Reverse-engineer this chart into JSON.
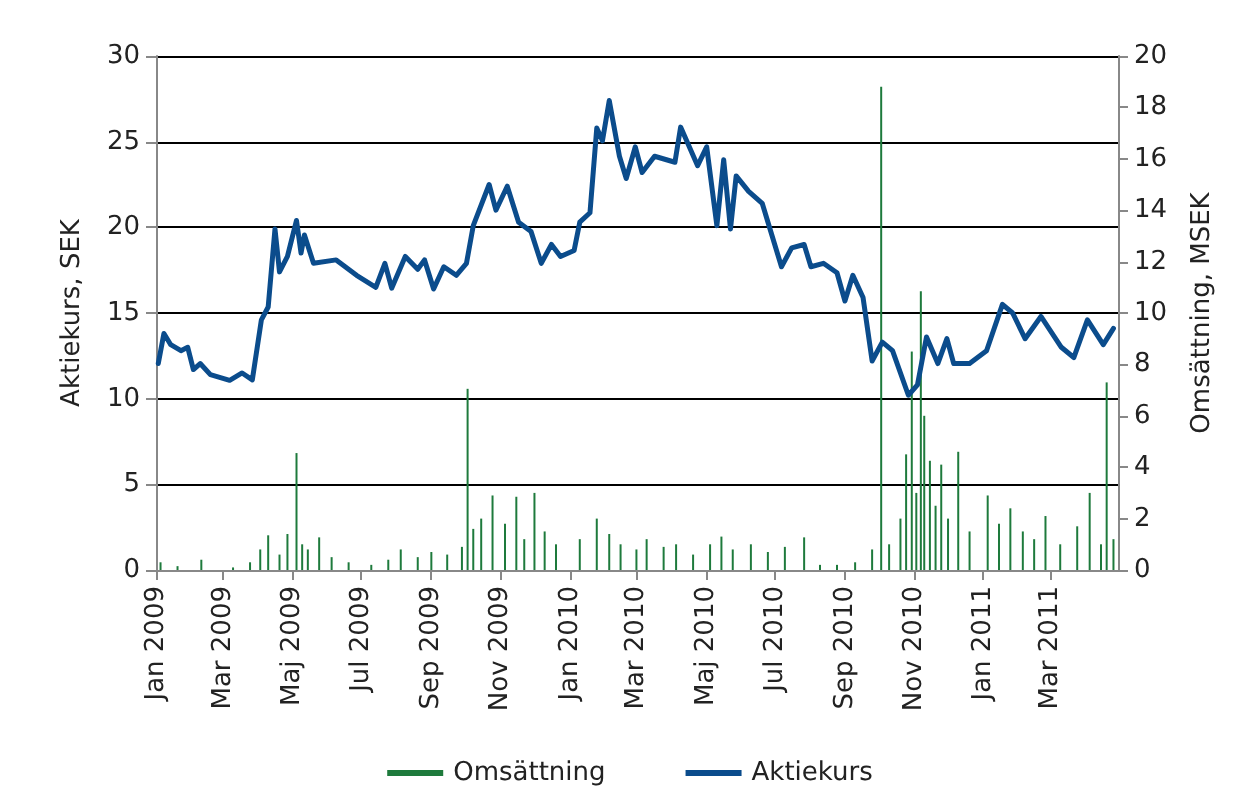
{
  "chart_data": {
    "type": "line",
    "ylabel": "Aktiekurs, SEK",
    "y2label": "Omsättning, MSEK",
    "xlim": [
      "2009-01-01",
      "2011-04-30"
    ],
    "xticks": [
      {
        "value": "2009-01-01",
        "label": "Jan 2009"
      },
      {
        "value": "2009-03-01",
        "label": "Mar 2009"
      },
      {
        "value": "2009-05-01",
        "label": "Maj 2009"
      },
      {
        "value": "2009-07-01",
        "label": "Jul 2009"
      },
      {
        "value": "2009-09-01",
        "label": "Sep 2009"
      },
      {
        "value": "2009-11-01",
        "label": "Nov 2009"
      },
      {
        "value": "2010-01-01",
        "label": "Jan 2010"
      },
      {
        "value": "2010-03-01",
        "label": "Mar 2010"
      },
      {
        "value": "2010-05-01",
        "label": "Maj 2010"
      },
      {
        "value": "2010-07-01",
        "label": "Jul 2010"
      },
      {
        "value": "2010-09-01",
        "label": "Sep 2010"
      },
      {
        "value": "2010-11-01",
        "label": "Nov 2010"
      },
      {
        "value": "2011-01-01",
        "label": "Jan 2011"
      },
      {
        "value": "2011-03-01",
        "label": "Mar 2011"
      }
    ],
    "ylim": [
      0,
      30
    ],
    "yticks": [
      0,
      5,
      10,
      15,
      20,
      25,
      30
    ],
    "y2lim": [
      0,
      20
    ],
    "y2ticks": [
      0,
      2,
      4,
      6,
      8,
      10,
      12,
      14,
      16,
      18,
      20
    ],
    "grid": "y",
    "legend": "bottom",
    "marker": "none",
    "line_style": "solid",
    "series": [
      {
        "name": "Omsättning",
        "type": "bar",
        "axis": "y2",
        "color": "#1e7a3c",
        "x": [
          "2009-01-05",
          "2009-01-20",
          "2009-02-10",
          "2009-03-10",
          "2009-03-25",
          "2009-04-03",
          "2009-04-10",
          "2009-04-20",
          "2009-04-27",
          "2009-05-05",
          "2009-05-10",
          "2009-05-15",
          "2009-05-25",
          "2009-06-05",
          "2009-06-20",
          "2009-07-10",
          "2009-07-25",
          "2009-08-05",
          "2009-08-20",
          "2009-09-01",
          "2009-09-15",
          "2009-09-28",
          "2009-10-03",
          "2009-10-08",
          "2009-10-15",
          "2009-10-25",
          "2009-11-05",
          "2009-11-15",
          "2009-11-22",
          "2009-12-01",
          "2009-12-10",
          "2009-12-20",
          "2010-01-10",
          "2010-01-25",
          "2010-02-05",
          "2010-02-15",
          "2010-03-01",
          "2010-03-10",
          "2010-03-25",
          "2010-04-05",
          "2010-04-20",
          "2010-05-05",
          "2010-05-15",
          "2010-05-25",
          "2010-06-10",
          "2010-06-25",
          "2010-07-10",
          "2010-07-27",
          "2010-08-10",
          "2010-08-25",
          "2010-09-10",
          "2010-09-25",
          "2010-10-03",
          "2010-10-10",
          "2010-10-20",
          "2010-10-25",
          "2010-10-30",
          "2010-11-03",
          "2010-11-07",
          "2010-11-10",
          "2010-11-15",
          "2010-11-20",
          "2010-11-25",
          "2010-12-01",
          "2010-12-10",
          "2010-12-20",
          "2011-01-05",
          "2011-01-15",
          "2011-01-25",
          "2011-02-05",
          "2011-02-15",
          "2011-02-25",
          "2011-03-10",
          "2011-03-25",
          "2011-04-05",
          "2011-04-15",
          "2011-04-20",
          "2011-04-26"
        ],
        "values": [
          0.3,
          0.15,
          0.4,
          0.1,
          0.3,
          0.8,
          1.35,
          0.6,
          1.4,
          4.55,
          1.0,
          0.8,
          1.27,
          0.5,
          0.3,
          0.2,
          0.4,
          0.8,
          0.5,
          0.7,
          0.6,
          0.9,
          7.05,
          1.6,
          2.0,
          2.9,
          1.8,
          2.85,
          1.2,
          3.0,
          1.5,
          1.0,
          1.2,
          2.0,
          1.4,
          1.0,
          0.8,
          1.2,
          0.9,
          1.0,
          0.6,
          1.0,
          1.3,
          0.8,
          1.0,
          0.7,
          0.9,
          1.27,
          0.2,
          0.2,
          0.3,
          0.8,
          18.8,
          1.0,
          2.0,
          4.5,
          8.5,
          3.0,
          10.85,
          6.0,
          4.25,
          2.5,
          4.1,
          2.0,
          4.6,
          1.5,
          2.9,
          1.8,
          2.4,
          1.5,
          1.2,
          2.1,
          1.0,
          1.7,
          3.0,
          1.0,
          7.3,
          1.2
        ]
      },
      {
        "name": "Aktiekurs",
        "color": "#0b4c8c",
        "x": [
          "2009-01-03",
          "2009-01-08",
          "2009-01-14",
          "2009-01-23",
          "2009-01-29",
          "2009-02-03",
          "2009-02-09",
          "2009-02-18",
          "2009-03-07",
          "2009-03-18",
          "2009-03-27",
          "2009-04-04",
          "2009-04-10",
          "2009-04-16",
          "2009-04-20",
          "2009-04-27",
          "2009-05-05",
          "2009-05-09",
          "2009-05-12",
          "2009-05-20",
          "2009-06-09",
          "2009-06-27",
          "2009-07-14",
          "2009-07-22",
          "2009-07-28",
          "2009-08-09",
          "2009-08-20",
          "2009-08-26",
          "2009-09-03",
          "2009-09-12",
          "2009-09-23",
          "2009-10-02",
          "2009-10-08",
          "2009-10-22",
          "2009-10-28",
          "2009-11-07",
          "2009-11-17",
          "2009-11-28",
          "2009-12-07",
          "2009-12-16",
          "2009-12-24",
          "2010-01-05",
          "2010-01-10",
          "2010-01-19",
          "2010-01-25",
          "2010-01-30",
          "2010-02-05",
          "2010-02-14",
          "2010-02-20",
          "2010-02-28",
          "2010-03-06",
          "2010-03-17",
          "2010-04-04",
          "2010-04-09",
          "2010-04-24",
          "2010-05-02",
          "2010-05-11",
          "2010-05-17",
          "2010-05-23",
          "2010-05-28",
          "2010-06-08",
          "2010-06-20",
          "2010-07-07",
          "2010-07-16",
          "2010-07-27",
          "2010-08-02",
          "2010-08-13",
          "2010-08-25",
          "2010-09-01",
          "2010-09-08",
          "2010-09-17",
          "2010-09-25",
          "2010-10-04",
          "2010-10-13",
          "2010-10-27",
          "2010-11-04",
          "2010-11-12",
          "2010-11-22",
          "2010-11-30",
          "2010-12-06",
          "2010-12-20",
          "2011-01-04",
          "2011-01-18",
          "2011-01-27",
          "2011-02-07",
          "2011-02-21",
          "2011-03-11",
          "2011-03-22",
          "2011-04-03",
          "2011-04-17",
          "2011-04-26"
        ],
        "values": [
          12.05,
          13.8,
          13.15,
          12.8,
          13.0,
          11.7,
          12.05,
          11.4,
          11.07,
          11.5,
          11.1,
          14.6,
          15.35,
          19.9,
          17.4,
          18.3,
          20.4,
          18.5,
          19.55,
          17.9,
          18.1,
          17.2,
          16.5,
          17.9,
          16.45,
          18.3,
          17.55,
          18.1,
          16.4,
          17.7,
          17.2,
          17.9,
          20.1,
          22.5,
          21.0,
          22.4,
          20.3,
          19.75,
          17.9,
          19.0,
          18.3,
          18.65,
          20.3,
          20.85,
          25.8,
          25.05,
          27.4,
          24.15,
          22.85,
          24.7,
          23.2,
          24.15,
          23.8,
          25.85,
          23.6,
          24.7,
          20.1,
          23.95,
          19.9,
          23.0,
          22.1,
          21.4,
          17.7,
          18.8,
          19.0,
          17.7,
          17.9,
          17.35,
          15.7,
          17.2,
          15.9,
          12.2,
          13.3,
          12.8,
          10.2,
          10.8,
          13.6,
          12.05,
          13.5,
          12.05,
          12.05,
          12.8,
          15.5,
          15.0,
          13.5,
          14.8,
          13.0,
          12.4,
          14.6,
          13.15,
          14.1
        ]
      }
    ]
  }
}
